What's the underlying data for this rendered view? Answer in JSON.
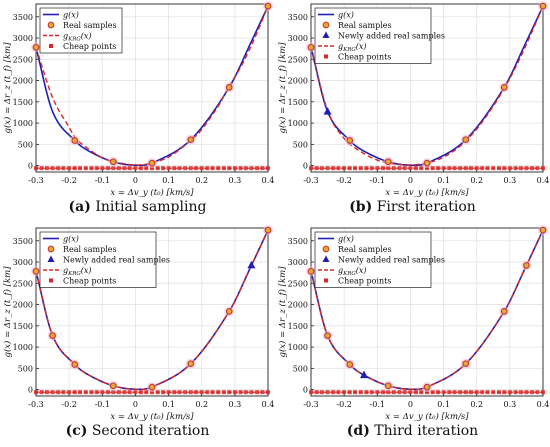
{
  "chart_data": [
    {
      "type": "line",
      "caption_tag": "(a)",
      "caption_text": "Initial sampling",
      "xlabel": "x = Δv_y (t₀) [km/s]",
      "ylabel": "g(x) = Δr_z (t_f) [km]",
      "xlim": [
        -0.3,
        0.4
      ],
      "ylim": [
        -150,
        3800
      ],
      "xticks": [
        "-0.3",
        "-0.2",
        "-0.1",
        "0",
        "0.1",
        "0.2",
        "0.3",
        "0.4"
      ],
      "yticks": [
        "0",
        "500",
        "1000",
        "1500",
        "2000",
        "2500",
        "3000",
        "3500"
      ],
      "grid": true,
      "legend_position": "top-left",
      "legend": [
        "g(x)",
        "Real samples",
        "g_KRG(x)",
        "Cheap points"
      ],
      "series": [
        {
          "name": "g(x)",
          "kind": "curve",
          "color": "#1f1fb4"
        },
        {
          "name": "g_KRG(x)",
          "kind": "kriging",
          "color": "#d62728",
          "x": [
            -0.3,
            -0.25,
            -0.2,
            -0.18,
            -0.15,
            -0.1,
            -0.07,
            -0.03,
            0,
            0.03,
            0.05,
            0.1,
            0.17,
            0.2,
            0.25,
            0.28,
            0.32,
            0.36,
            0.4
          ],
          "y": [
            2780,
            1600,
            900,
            640,
            440,
            180,
            100,
            40,
            15,
            30,
            70,
            200,
            610,
            850,
            1400,
            1830,
            2350,
            3000,
            3750
          ]
        },
        {
          "name": "Real samples",
          "kind": "circle",
          "x": [
            -0.3,
            -0.183,
            -0.067,
            0.05,
            0.167,
            0.283,
            0.4
          ],
          "y": [
            2780,
            590,
            90,
            60,
            610,
            1840,
            3750
          ]
        },
        {
          "name": "Cheap points",
          "kind": "square",
          "x": [
            -0.3,
            -0.283,
            -0.267,
            -0.25,
            -0.233,
            -0.217,
            -0.2,
            -0.183,
            -0.167,
            -0.15,
            -0.133,
            -0.117,
            -0.1,
            -0.083,
            -0.067,
            -0.05,
            -0.033,
            -0.017,
            0,
            0.017,
            0.033,
            0.05,
            0.067,
            0.083,
            0.1,
            0.117,
            0.133,
            0.15,
            0.167,
            0.183,
            0.2,
            0.217,
            0.233,
            0.25,
            0.267,
            0.283,
            0.3,
            0.317,
            0.333,
            0.35,
            0.367,
            0.383,
            0.4
          ],
          "y_level": -60
        }
      ]
    },
    {
      "type": "line",
      "caption_tag": "(b)",
      "caption_text": "First iteration",
      "xlabel": "x = Δv_y (t₀) [km/s]",
      "ylabel": "g(x) = Δr_z (t_f) [km]",
      "xlim": [
        -0.3,
        0.4
      ],
      "ylim": [
        -150,
        3800
      ],
      "xticks": [
        "-0.3",
        "-0.2",
        "-0.1",
        "0",
        "0.1",
        "0.2",
        "0.3",
        "0.4"
      ],
      "yticks": [
        "0",
        "500",
        "1000",
        "1500",
        "2000",
        "2500",
        "3000",
        "3500"
      ],
      "grid": true,
      "legend_position": "top-left",
      "legend": [
        "g(x)",
        "Real samples",
        "Newly added real samples",
        "g_KRG(x)",
        "Cheap points"
      ],
      "series": [
        {
          "name": "g(x)",
          "kind": "curve",
          "color": "#1f1fb4"
        },
        {
          "name": "g_KRG(x)",
          "kind": "kriging",
          "color": "#d62728",
          "x": [
            -0.3,
            -0.25,
            -0.2,
            -0.15,
            -0.1,
            -0.05,
            0,
            0.05,
            0.1,
            0.15,
            0.2,
            0.25,
            0.3,
            0.35,
            0.4
          ],
          "y": [
            2790,
            1290,
            640,
            330,
            130,
            40,
            15,
            60,
            200,
            460,
            860,
            1400,
            2050,
            2850,
            3750
          ]
        },
        {
          "name": "Real samples",
          "kind": "circle",
          "x": [
            -0.3,
            -0.183,
            -0.067,
            0.05,
            0.167,
            0.283,
            0.4
          ],
          "y": [
            2780,
            590,
            90,
            60,
            610,
            1840,
            3750
          ]
        },
        {
          "name": "Newly added real samples",
          "kind": "triangle",
          "x": [
            -0.25
          ],
          "y": [
            1270
          ]
        },
        {
          "name": "Cheap points",
          "kind": "square",
          "y_level": -60
        }
      ]
    },
    {
      "type": "line",
      "caption_tag": "(c)",
      "caption_text": "Second iteration",
      "xlabel": "x = Δv_y (t₀) [km/s]",
      "ylabel": "g(x) = Δr_z (t_f) [km]",
      "xlim": [
        -0.3,
        0.4
      ],
      "ylim": [
        -150,
        3800
      ],
      "xticks": [
        "-0.3",
        "-0.2",
        "-0.1",
        "0",
        "0.1",
        "0.2",
        "0.3",
        "0.4"
      ],
      "yticks": [
        "0",
        "500",
        "1000",
        "1500",
        "2000",
        "2500",
        "3000",
        "3500"
      ],
      "grid": true,
      "legend_position": "top-left",
      "legend": [
        "g(x)",
        "Real samples",
        "Newly added real samples",
        "g_KRG(x)",
        "Cheap points"
      ],
      "series": [
        {
          "name": "g(x)",
          "kind": "curve",
          "color": "#1f1fb4"
        },
        {
          "name": "g_KRG(x)",
          "kind": "kriging",
          "color": "#d62728"
        },
        {
          "name": "Real samples",
          "kind": "circle",
          "x": [
            -0.3,
            -0.25,
            -0.183,
            -0.067,
            0.05,
            0.167,
            0.283,
            0.4
          ],
          "y": [
            2780,
            1270,
            590,
            90,
            60,
            610,
            1840,
            3750
          ]
        },
        {
          "name": "Newly added real samples",
          "kind": "triangle",
          "x": [
            0.35
          ],
          "y": [
            2920
          ]
        },
        {
          "name": "Cheap points",
          "kind": "square",
          "y_level": -60
        }
      ]
    },
    {
      "type": "line",
      "caption_tag": "(d)",
      "caption_text": "Third iteration",
      "xlabel": "x = Δv_y (t₀) [km/s]",
      "ylabel": "g(x) = Δr_z (t_f) [km]",
      "xlim": [
        -0.3,
        0.4
      ],
      "ylim": [
        -150,
        3800
      ],
      "xticks": [
        "-0.3",
        "-0.2",
        "-0.1",
        "0",
        "0.1",
        "0.2",
        "0.3",
        "0.4"
      ],
      "yticks": [
        "0",
        "500",
        "1000",
        "1500",
        "2000",
        "2500",
        "3000",
        "3500"
      ],
      "grid": true,
      "legend_position": "top-left",
      "legend": [
        "g(x)",
        "Real samples",
        "Newly added real samples",
        "g_KRG(x)",
        "Cheap points"
      ],
      "series": [
        {
          "name": "g(x)",
          "kind": "curve",
          "color": "#1f1fb4"
        },
        {
          "name": "g_KRG(x)",
          "kind": "kriging",
          "color": "#d62728"
        },
        {
          "name": "Real samples",
          "kind": "circle",
          "x": [
            -0.3,
            -0.25,
            -0.183,
            -0.067,
            0.05,
            0.167,
            0.283,
            0.35,
            0.4
          ],
          "y": [
            2780,
            1270,
            590,
            90,
            60,
            610,
            1840,
            2920,
            3750
          ]
        },
        {
          "name": "Newly added real samples",
          "kind": "triangle",
          "x": [
            -0.14
          ],
          "y": [
            340
          ]
        },
        {
          "name": "Cheap points",
          "kind": "square",
          "y_level": -60
        }
      ]
    }
  ],
  "colors": {
    "curve": "#1f1fb4",
    "kriging": "#d62728",
    "sample_edge": "#c0392b",
    "sample_fill": "#e8a838",
    "triangle": "#1f1fb4",
    "cheap": "#d62728",
    "sample_halo": "#f7b6d2",
    "grid": "#e3e3e3"
  }
}
